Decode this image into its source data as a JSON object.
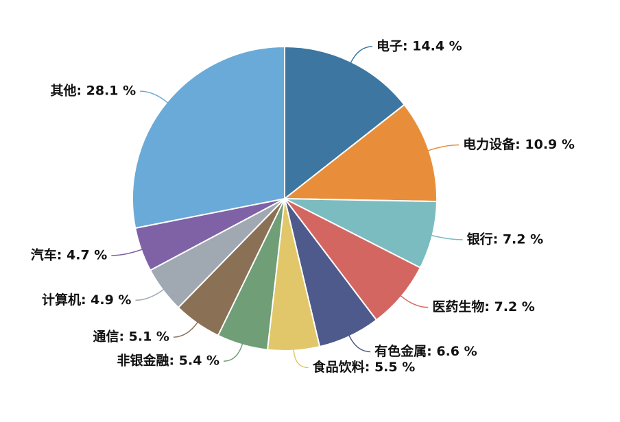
{
  "chart_data": {
    "type": "pie",
    "values": [
      14.4,
      10.9,
      7.2,
      7.2,
      6.6,
      5.5,
      5.4,
      5.1,
      4.9,
      4.7,
      28.1
    ],
    "value_labels": [
      "电子: 14.4 %",
      "电力设备: 10.9 %",
      "银行: 7.2 %",
      "医药生物: 7.2 %",
      "有色金属: 6.6 %",
      "食品饮料: 5.5 %",
      "非银金融: 5.4 %",
      "通信: 5.1 %",
      "计算机: 4.9 %",
      "汽车: 4.7 %",
      "其他: 28.1 %"
    ],
    "colors": [
      "#3d76a0",
      "#e88e3b",
      "#7bbcc1",
      "#d46662",
      "#4e5a8b",
      "#e2c76a",
      "#6f9e77",
      "#8a7055",
      "#a0a9b2",
      "#7f62a6",
      "#6aaad8"
    ]
  }
}
